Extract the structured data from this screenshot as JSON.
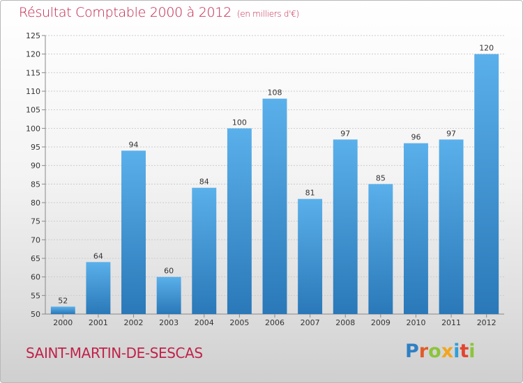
{
  "header": {
    "title": "Résultat Comptable 2000 à 2012",
    "subtitle": "(en milliers d'€)"
  },
  "footer": {
    "commune": "SAINT-MARTIN-DE-SESCAS",
    "logo_text": "Proxiti",
    "logo_letters": [
      {
        "ch": "P",
        "color": "#2f7fc4"
      },
      {
        "ch": "r",
        "color": "#e25b2a"
      },
      {
        "ch": "o",
        "color": "#8cc43c"
      },
      {
        "ch": "x",
        "color": "#f2a51d"
      },
      {
        "ch": "i",
        "color": "#2f9fd8"
      },
      {
        "ch": "t",
        "color": "#e2452e"
      },
      {
        "ch": "i",
        "color": "#8cc43c"
      }
    ]
  },
  "chart_data": {
    "type": "bar",
    "title": "Résultat Comptable 2000 à 2012",
    "subtitle": "(en milliers d'€)",
    "xlabel": "",
    "ylabel": "",
    "categories": [
      "2000",
      "2001",
      "2002",
      "2003",
      "2004",
      "2005",
      "2006",
      "2007",
      "2008",
      "2009",
      "2010",
      "2011",
      "2012"
    ],
    "values": [
      52,
      64,
      94,
      60,
      84,
      100,
      108,
      81,
      97,
      85,
      96,
      97,
      120
    ],
    "ylim": [
      50,
      125
    ],
    "yticks": [
      50,
      55,
      60,
      65,
      70,
      75,
      80,
      85,
      90,
      95,
      100,
      105,
      110,
      115,
      120,
      125
    ],
    "grid": true,
    "legend": "none",
    "colors": {
      "bar_light": "#5ab0ea",
      "bar_dark": "#2a78b8",
      "grid": "#cccccc",
      "axis": "#888888"
    }
  }
}
